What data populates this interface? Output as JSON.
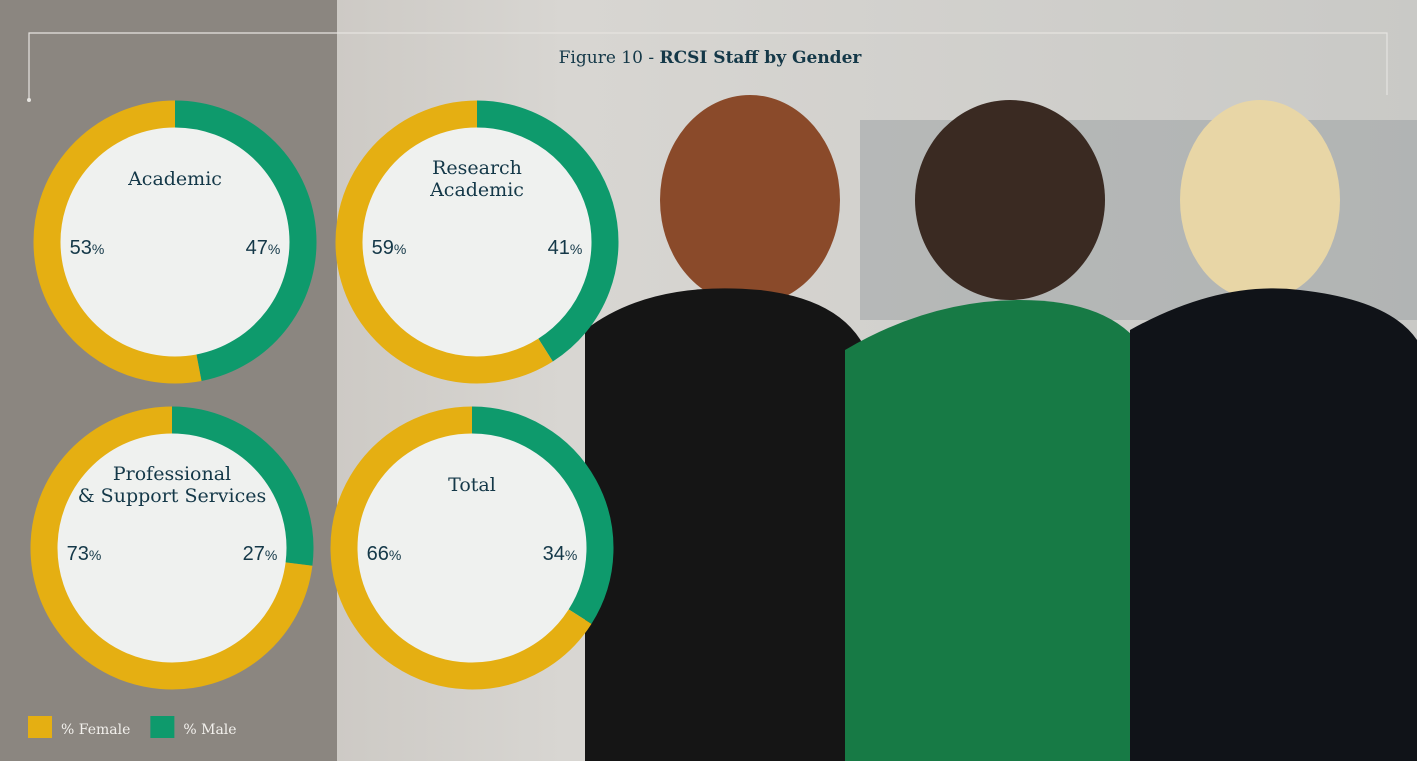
{
  "figure_label": "Figure 10 -",
  "title": "RCSI Staff by Gender",
  "chart_data": [
    {
      "type": "pie",
      "title": [
        "Academic"
      ],
      "categories": [
        "% Female",
        "% Male"
      ],
      "values": [
        53,
        47
      ],
      "value_labels": [
        "53%",
        "47%"
      ],
      "colors": [
        "#e5af12",
        "#0e9a6c"
      ]
    },
    {
      "type": "pie",
      "title": [
        "Research",
        "Academic"
      ],
      "categories": [
        "% Female",
        "% Male"
      ],
      "values": [
        59,
        41
      ],
      "value_labels": [
        "59%",
        "41%"
      ],
      "colors": [
        "#e5af12",
        "#0e9a6c"
      ]
    },
    {
      "type": "pie",
      "title": [
        "Professional",
        "& Support Services"
      ],
      "categories": [
        "% Female",
        "% Male"
      ],
      "values": [
        73,
        27
      ],
      "value_labels": [
        "73%",
        "27%"
      ],
      "colors": [
        "#e5af12",
        "#0e9a6c"
      ]
    },
    {
      "type": "pie",
      "title": [
        "Total"
      ],
      "categories": [
        "% Female",
        "% Male"
      ],
      "values": [
        66,
        34
      ],
      "value_labels": [
        "66%",
        "34%"
      ],
      "colors": [
        "#e5af12",
        "#0e9a6c"
      ]
    }
  ]
}
